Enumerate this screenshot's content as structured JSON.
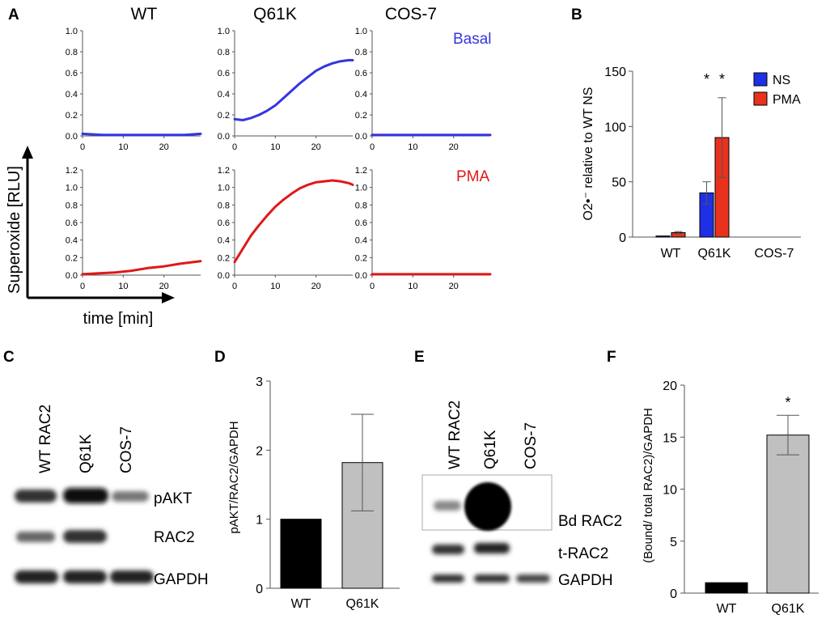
{
  "panel_labels": {
    "a": "A",
    "b": "B",
    "c": "C",
    "d": "D",
    "e": "E",
    "f": "F"
  },
  "colors": {
    "basal": "#3535e0",
    "pma": "#e01818",
    "ns_bar": "#1f2fe6",
    "pma_bar": "#e8321e",
    "gray_bar": "#c0c0c0",
    "black_bar": "#000000"
  },
  "chart_data": [
    {
      "id": "A",
      "type": "line",
      "column_titles": [
        "WT",
        "Q61K",
        "COS-7"
      ],
      "row_labels": [
        "Basal",
        "PMA"
      ],
      "ylabel": "Superoxide [RLU]",
      "xlabel": "time [min]",
      "xlim": [
        0,
        29
      ],
      "xticks": [
        "0",
        "10",
        "20"
      ],
      "top_row": {
        "ylim": [
          0,
          1.0
        ],
        "yticks": [
          "0.0",
          "0.2",
          "0.4",
          "0.6",
          "0.8",
          "1.0"
        ]
      },
      "bottom_row": {
        "ylim": [
          0,
          1.2
        ],
        "yticks": [
          "0.0",
          "0.2",
          "0.4",
          "0.6",
          "0.8",
          "1.0",
          "1.2"
        ]
      },
      "series": [
        {
          "name": "WT Basal",
          "x": [
            0,
            5,
            10,
            15,
            20,
            25,
            29
          ],
          "y": [
            0.02,
            0.01,
            0.01,
            0.01,
            0.01,
            0.01,
            0.02
          ]
        },
        {
          "name": "Q61K Basal",
          "x": [
            0,
            2,
            4,
            6,
            8,
            10,
            12,
            14,
            16,
            18,
            20,
            22,
            24,
            26,
            28,
            29
          ],
          "y": [
            0.16,
            0.15,
            0.17,
            0.2,
            0.24,
            0.29,
            0.36,
            0.43,
            0.5,
            0.56,
            0.62,
            0.66,
            0.69,
            0.71,
            0.72,
            0.72
          ]
        },
        {
          "name": "COS-7 Basal",
          "x": [
            0,
            5,
            10,
            15,
            20,
            25,
            29
          ],
          "y": [
            0.01,
            0.01,
            0.01,
            0.01,
            0.01,
            0.01,
            0.01
          ]
        },
        {
          "name": "WT PMA",
          "x": [
            0,
            4,
            8,
            12,
            16,
            20,
            24,
            29
          ],
          "y": [
            0.01,
            0.02,
            0.03,
            0.05,
            0.08,
            0.1,
            0.13,
            0.16
          ]
        },
        {
          "name": "Q61K PMA",
          "x": [
            0,
            2,
            4,
            6,
            8,
            10,
            12,
            14,
            16,
            18,
            20,
            22,
            24,
            26,
            28,
            29
          ],
          "y": [
            0.15,
            0.3,
            0.45,
            0.57,
            0.68,
            0.78,
            0.86,
            0.93,
            0.99,
            1.03,
            1.06,
            1.07,
            1.08,
            1.07,
            1.05,
            1.03
          ]
        },
        {
          "name": "COS-7 PMA",
          "x": [
            0,
            5,
            10,
            15,
            20,
            25,
            29
          ],
          "y": [
            0.01,
            0.01,
            0.01,
            0.01,
            0.01,
            0.01,
            0.01
          ]
        }
      ]
    },
    {
      "id": "B",
      "type": "bar",
      "categories": [
        "WT",
        "Q61K",
        "COS-7"
      ],
      "series": [
        {
          "name": "NS",
          "values": [
            1,
            40,
            0
          ],
          "errors": [
            0,
            10,
            0
          ]
        },
        {
          "name": "PMA",
          "values": [
            4,
            90,
            0
          ],
          "errors": [
            1,
            36,
            0
          ]
        }
      ],
      "ylabel": "O2•⁻ relative to WT NS",
      "ylim": [
        0,
        150
      ],
      "yticks": [
        "0",
        "50",
        "100",
        "150"
      ],
      "annotations": [
        "*",
        "*"
      ],
      "legend": "top-right"
    },
    {
      "id": "D",
      "type": "bar",
      "categories": [
        "WT",
        "Q61K"
      ],
      "values": [
        1.0,
        1.82
      ],
      "errors": [
        0,
        0.7
      ],
      "ylabel": "pAKT/RAC2/GAPDH",
      "ylim": [
        0,
        3
      ],
      "yticks": [
        "0",
        "1",
        "2",
        "3"
      ]
    },
    {
      "id": "F",
      "type": "bar",
      "categories": [
        "WT",
        "Q61K"
      ],
      "values": [
        1.0,
        15.2
      ],
      "errors": [
        0,
        1.9
      ],
      "ylabel": "(Bound/ total RAC2)/GAPDH",
      "ylim": [
        0,
        20
      ],
      "yticks": [
        "0",
        "5",
        "10",
        "15",
        "20"
      ],
      "annotations": [
        "*"
      ]
    }
  ],
  "blot_c": {
    "lanes": [
      "WT RAC2",
      "Q61K",
      "COS-7"
    ],
    "bands": [
      "pAKT",
      "RAC2",
      "GAPDH"
    ]
  },
  "blot_e": {
    "lanes": [
      "WT RAC2",
      "Q61K",
      "COS-7"
    ],
    "bands": [
      "Bd RAC2",
      "t-RAC2",
      "GAPDH"
    ]
  }
}
